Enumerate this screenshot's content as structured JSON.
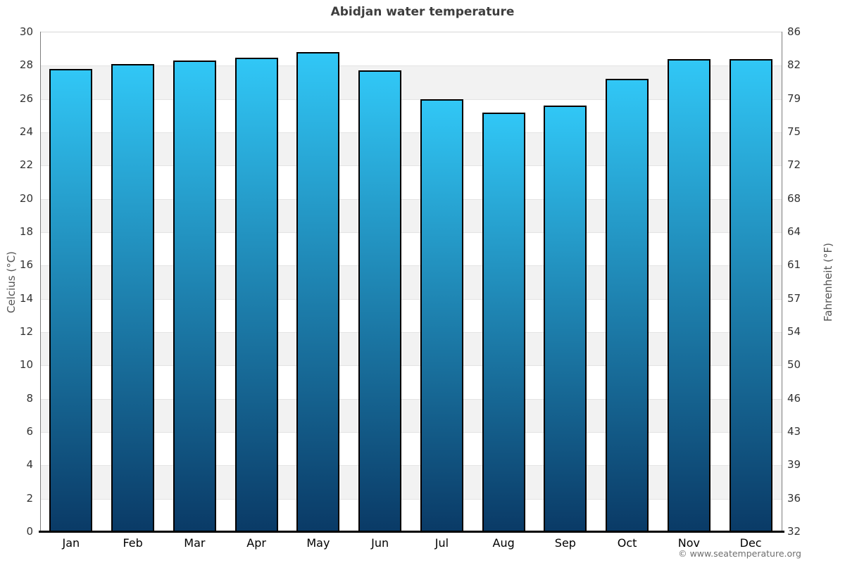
{
  "title": "Abidjan water temperature",
  "footer": {
    "copyright": "© www.seatemperature.org"
  },
  "chart_data": {
    "type": "bar",
    "title": "Abidjan water temperature",
    "categories": [
      "Jan",
      "Feb",
      "Mar",
      "Apr",
      "May",
      "Jun",
      "Jul",
      "Aug",
      "Sep",
      "Oct",
      "Nov",
      "Dec"
    ],
    "values": [
      27.8,
      28.1,
      28.3,
      28.5,
      28.8,
      27.7,
      26.0,
      25.2,
      25.6,
      27.2,
      28.4,
      28.4
    ],
    "series_name": "Water temperature",
    "xlabel": "",
    "ylabel_left": "Celcius (°C)",
    "ylabel_right": "Fahrenheit (°F)",
    "ylim": [
      0,
      30
    ],
    "grid": "alternating horizontal bands every 2°C",
    "legend": "none",
    "celsius_ticks": [
      0,
      2,
      4,
      6,
      8,
      10,
      12,
      14,
      16,
      18,
      20,
      22,
      24,
      26,
      28,
      30
    ],
    "fahrenheit_tick_labels": [
      "32",
      "36",
      "39",
      "43",
      "46",
      "50",
      "54",
      "57",
      "61",
      "64",
      "68",
      "72",
      "75",
      "79",
      "82",
      "86"
    ],
    "colors": {
      "bar_gradient_top": "#31c7f6",
      "bar_gradient_bottom": "#0a3a66",
      "bar_border": "#000000",
      "band_gray": "#f2f2f2",
      "band_white": "#ffffff",
      "baseline": "#000000",
      "title_text": "#3e3e3e",
      "tick_text": "#333333",
      "axis_title_text": "#555555",
      "footer_text": "#6f6f6f"
    }
  }
}
